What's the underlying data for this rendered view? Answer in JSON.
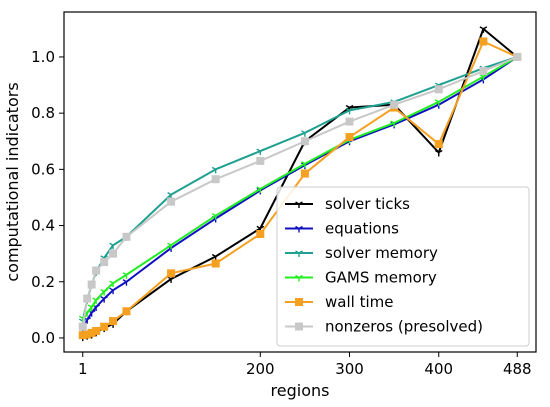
{
  "chart_data": {
    "type": "line",
    "xlabel": "regions",
    "ylabel": "computational indicators",
    "x_ticks": [
      {
        "value": 1,
        "label": "1"
      },
      {
        "value": 200,
        "label": "200"
      },
      {
        "value": 300,
        "label": "300"
      },
      {
        "value": 400,
        "label": "400"
      },
      {
        "value": 488,
        "label": "488"
      }
    ],
    "y_ticks": [
      {
        "value": 0.0,
        "label": "0.0"
      },
      {
        "value": 0.2,
        "label": "0.2"
      },
      {
        "value": 0.4,
        "label": "0.4"
      },
      {
        "value": 0.6,
        "label": "0.6"
      },
      {
        "value": 0.8,
        "label": "0.8"
      },
      {
        "value": 1.0,
        "label": "1.0"
      }
    ],
    "xlim": [
      -20,
      509
    ],
    "ylim": [
      -0.05,
      1.16
    ],
    "grid": false,
    "legend_position": "lower-right",
    "series": [
      {
        "name": "solver ticks",
        "color": "#000000",
        "marker": "tri_down",
        "x": [
          1,
          6,
          11,
          16,
          25,
          35,
          50,
          100,
          150,
          200,
          250,
          300,
          350,
          400,
          450,
          488
        ],
        "y": [
          0.003,
          0.008,
          0.012,
          0.02,
          0.035,
          0.05,
          0.095,
          0.21,
          0.29,
          0.39,
          0.7,
          0.82,
          0.83,
          0.66,
          1.1,
          1.0
        ]
      },
      {
        "name": "equations",
        "color": "#1010c0",
        "marker": "tri_down",
        "x": [
          1,
          6,
          11,
          16,
          25,
          35,
          50,
          100,
          150,
          200,
          250,
          300,
          350,
          400,
          450,
          488
        ],
        "y": [
          0.03,
          0.065,
          0.09,
          0.11,
          0.14,
          0.17,
          0.2,
          0.32,
          0.425,
          0.525,
          0.615,
          0.7,
          0.76,
          0.83,
          0.92,
          1.0
        ]
      },
      {
        "name": "solver memory",
        "color": "#20a090",
        "marker": "tri_down",
        "x": [
          1,
          6,
          11,
          16,
          25,
          35,
          50,
          100,
          150,
          200,
          250,
          300,
          350,
          400,
          450,
          488
        ],
        "y": [
          0.06,
          0.135,
          0.19,
          0.235,
          0.285,
          0.33,
          0.36,
          0.51,
          0.6,
          0.665,
          0.73,
          0.81,
          0.84,
          0.9,
          0.96,
          1.0
        ]
      },
      {
        "name": "GAMS memory",
        "color": "#22ee22",
        "marker": "tri_down",
        "x": [
          1,
          6,
          11,
          16,
          25,
          35,
          50,
          100,
          150,
          200,
          250,
          300,
          350,
          400,
          450,
          488
        ],
        "y": [
          0.07,
          0.09,
          0.11,
          0.135,
          0.165,
          0.195,
          0.225,
          0.33,
          0.435,
          0.53,
          0.62,
          0.705,
          0.765,
          0.84,
          0.93,
          1.0
        ]
      },
      {
        "name": "wall time",
        "color": "#f5a020",
        "marker": "square",
        "x": [
          1,
          6,
          11,
          16,
          25,
          35,
          50,
          100,
          150,
          200,
          250,
          300,
          350,
          400,
          450,
          488
        ],
        "y": [
          0.01,
          0.012,
          0.018,
          0.025,
          0.04,
          0.06,
          0.095,
          0.23,
          0.265,
          0.37,
          0.585,
          0.715,
          0.82,
          0.69,
          1.055,
          1.0
        ]
      },
      {
        "name": "nonzeros (presolved)",
        "color": "#c8c8c8",
        "marker": "square",
        "x": [
          1,
          6,
          11,
          16,
          25,
          35,
          50,
          100,
          150,
          200,
          250,
          300,
          350,
          400,
          450,
          488
        ],
        "y": [
          0.04,
          0.14,
          0.19,
          0.24,
          0.27,
          0.3,
          0.36,
          0.485,
          0.565,
          0.63,
          0.7,
          0.77,
          0.83,
          0.885,
          0.95,
          1.0
        ]
      }
    ]
  }
}
